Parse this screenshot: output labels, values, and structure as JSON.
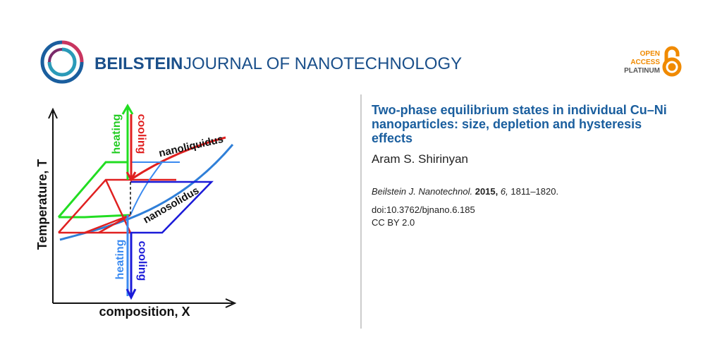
{
  "header": {
    "publisher": "BEILSTEIN",
    "journal": "JOURNAL OF NANOTECHNOLOGY",
    "badge": [
      "OPEN",
      "ACCESS",
      "PLATINUM"
    ]
  },
  "figure": {
    "y_axis_label": "Temperature, T",
    "x_axis_label": "composition, X",
    "top_heating": "heating",
    "top_cooling": "cooling",
    "bottom_heating": "heating",
    "bottom_cooling": "cooling",
    "liquidus": "nanoliquidus",
    "solidus": "nanosolidus"
  },
  "article": {
    "title": "Two-phase equilibrium states in individual Cu–Ni nanoparticles: size, depletion and hysteresis effects",
    "author": "Aram S. Shirinyan",
    "citation": {
      "journal": "Beilstein J. Nanotechnol.",
      "year": "2015,",
      "volume": "6,",
      "pages": "1811–1820."
    },
    "doi": "doi:10.3762/bjnano.6.185",
    "license": "CC BY 2.0"
  }
}
